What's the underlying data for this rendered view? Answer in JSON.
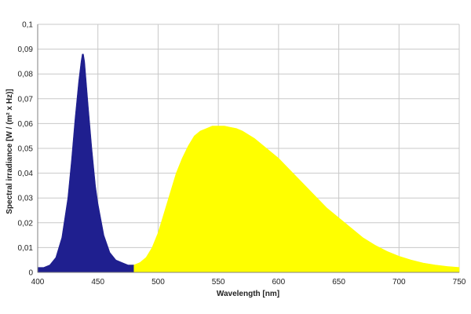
{
  "chart_data": {
    "type": "area",
    "title": "",
    "xlabel": "Wavelength [nm]",
    "ylabel": "Spectral irradiance [W / (m² x Hz)]",
    "xlim": [
      400,
      750
    ],
    "ylim": [
      0,
      0.1
    ],
    "grid": true,
    "legend": "none",
    "x_ticks": [
      "400",
      "450",
      "500",
      "550",
      "600",
      "650",
      "700",
      "750"
    ],
    "y_ticks": [
      "0",
      "0,01",
      "0,02",
      "0,03",
      "0,04",
      "0,05",
      "0,06",
      "0,07",
      "0,08",
      "0,09",
      "0,1"
    ],
    "series": [
      {
        "color": "#1f1f8f",
        "x": [
          400,
          405,
          410,
          415,
          420,
          425,
          428,
          431,
          434,
          436,
          437,
          438,
          439,
          440,
          442,
          445,
          448,
          450,
          455,
          460,
          465,
          470,
          475,
          480
        ],
        "values": [
          0.002,
          0.002,
          0.003,
          0.006,
          0.014,
          0.03,
          0.045,
          0.062,
          0.077,
          0.085,
          0.088,
          0.088,
          0.085,
          0.079,
          0.067,
          0.05,
          0.035,
          0.028,
          0.015,
          0.008,
          0.005,
          0.004,
          0.003,
          0.003
        ]
      },
      {
        "color": "#ffff00",
        "x": [
          480,
          485,
          490,
          495,
          500,
          505,
          510,
          515,
          520,
          525,
          530,
          535,
          540,
          545,
          550,
          555,
          560,
          565,
          570,
          575,
          580,
          590,
          600,
          610,
          620,
          630,
          640,
          650,
          660,
          670,
          680,
          690,
          700,
          710,
          720,
          730,
          740,
          750
        ],
        "values": [
          0.003,
          0.004,
          0.006,
          0.01,
          0.016,
          0.024,
          0.032,
          0.04,
          0.046,
          0.051,
          0.055,
          0.057,
          0.058,
          0.059,
          0.059,
          0.059,
          0.0585,
          0.058,
          0.057,
          0.0555,
          0.054,
          0.05,
          0.046,
          0.041,
          0.036,
          0.031,
          0.026,
          0.022,
          0.018,
          0.014,
          0.011,
          0.0085,
          0.0065,
          0.005,
          0.0038,
          0.003,
          0.0024,
          0.002
        ]
      }
    ]
  }
}
